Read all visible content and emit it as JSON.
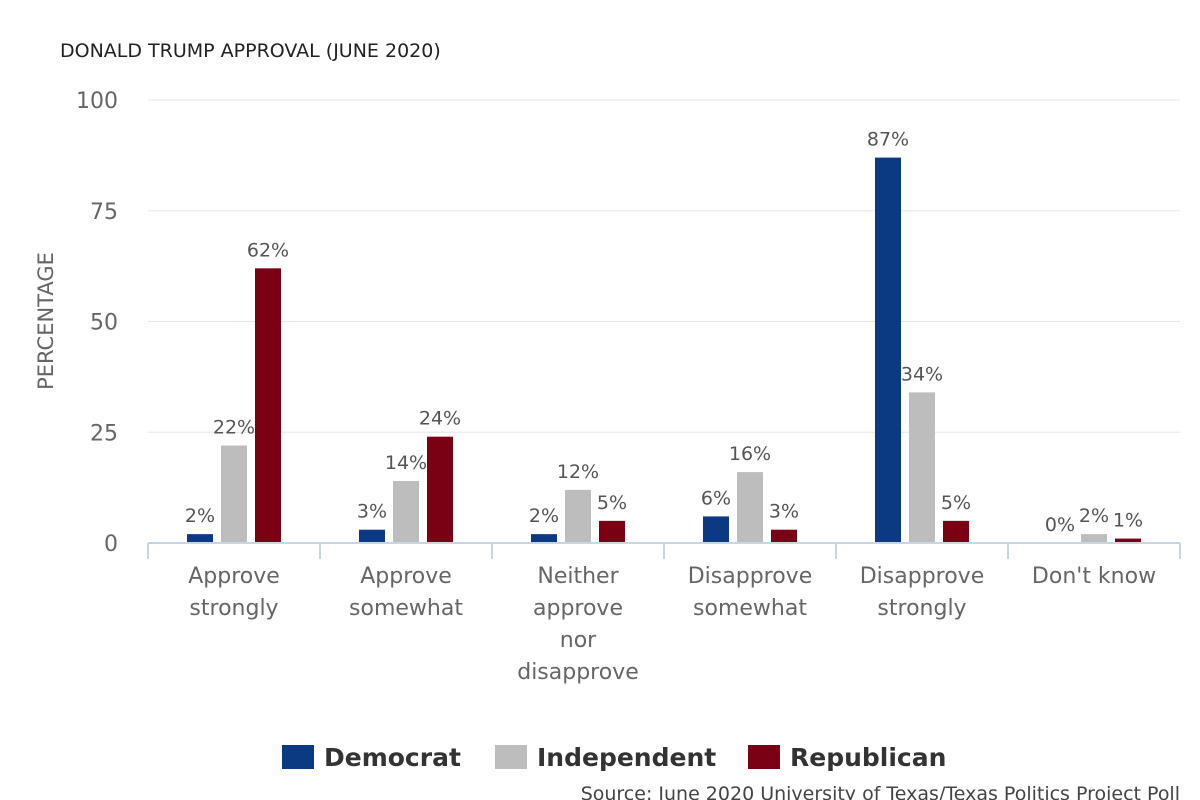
{
  "chart_data": {
    "type": "bar",
    "title": "DONALD TRUMP APPROVAL (JUNE 2020)",
    "ylabel": "PERCENTAGE",
    "xlabel": "",
    "ylim": [
      0,
      100
    ],
    "yticks": [
      0,
      25,
      50,
      75,
      100
    ],
    "grid": true,
    "legend_position": "bottom",
    "categories": [
      [
        "Approve",
        "strongly"
      ],
      [
        "Approve",
        "somewhat"
      ],
      [
        "Neither",
        "approve",
        "nor",
        "disapprove"
      ],
      [
        "Disapprove",
        "somewhat"
      ],
      [
        "Disapprove",
        "strongly"
      ],
      [
        "Don't know"
      ]
    ],
    "series": [
      {
        "name": "Democrat",
        "color": "#0b3a82",
        "values": [
          2,
          3,
          2,
          6,
          87,
          0
        ],
        "labels": [
          "2%",
          "3%",
          "2%",
          "6%",
          "87%",
          "0%"
        ]
      },
      {
        "name": "Independent",
        "color": "#bdbdbd",
        "values": [
          22,
          14,
          12,
          16,
          34,
          2
        ],
        "labels": [
          "22%",
          "14%",
          "12%",
          "16%",
          "34%",
          "2%"
        ]
      },
      {
        "name": "Republican",
        "color": "#7a0014",
        "values": [
          62,
          24,
          5,
          3,
          5,
          1
        ],
        "labels": [
          "62%",
          "24%",
          "5%",
          "3%",
          "5%",
          "1%"
        ]
      }
    ],
    "source": "Source: June 2020 University of Texas/Texas Politics Project Poll"
  }
}
